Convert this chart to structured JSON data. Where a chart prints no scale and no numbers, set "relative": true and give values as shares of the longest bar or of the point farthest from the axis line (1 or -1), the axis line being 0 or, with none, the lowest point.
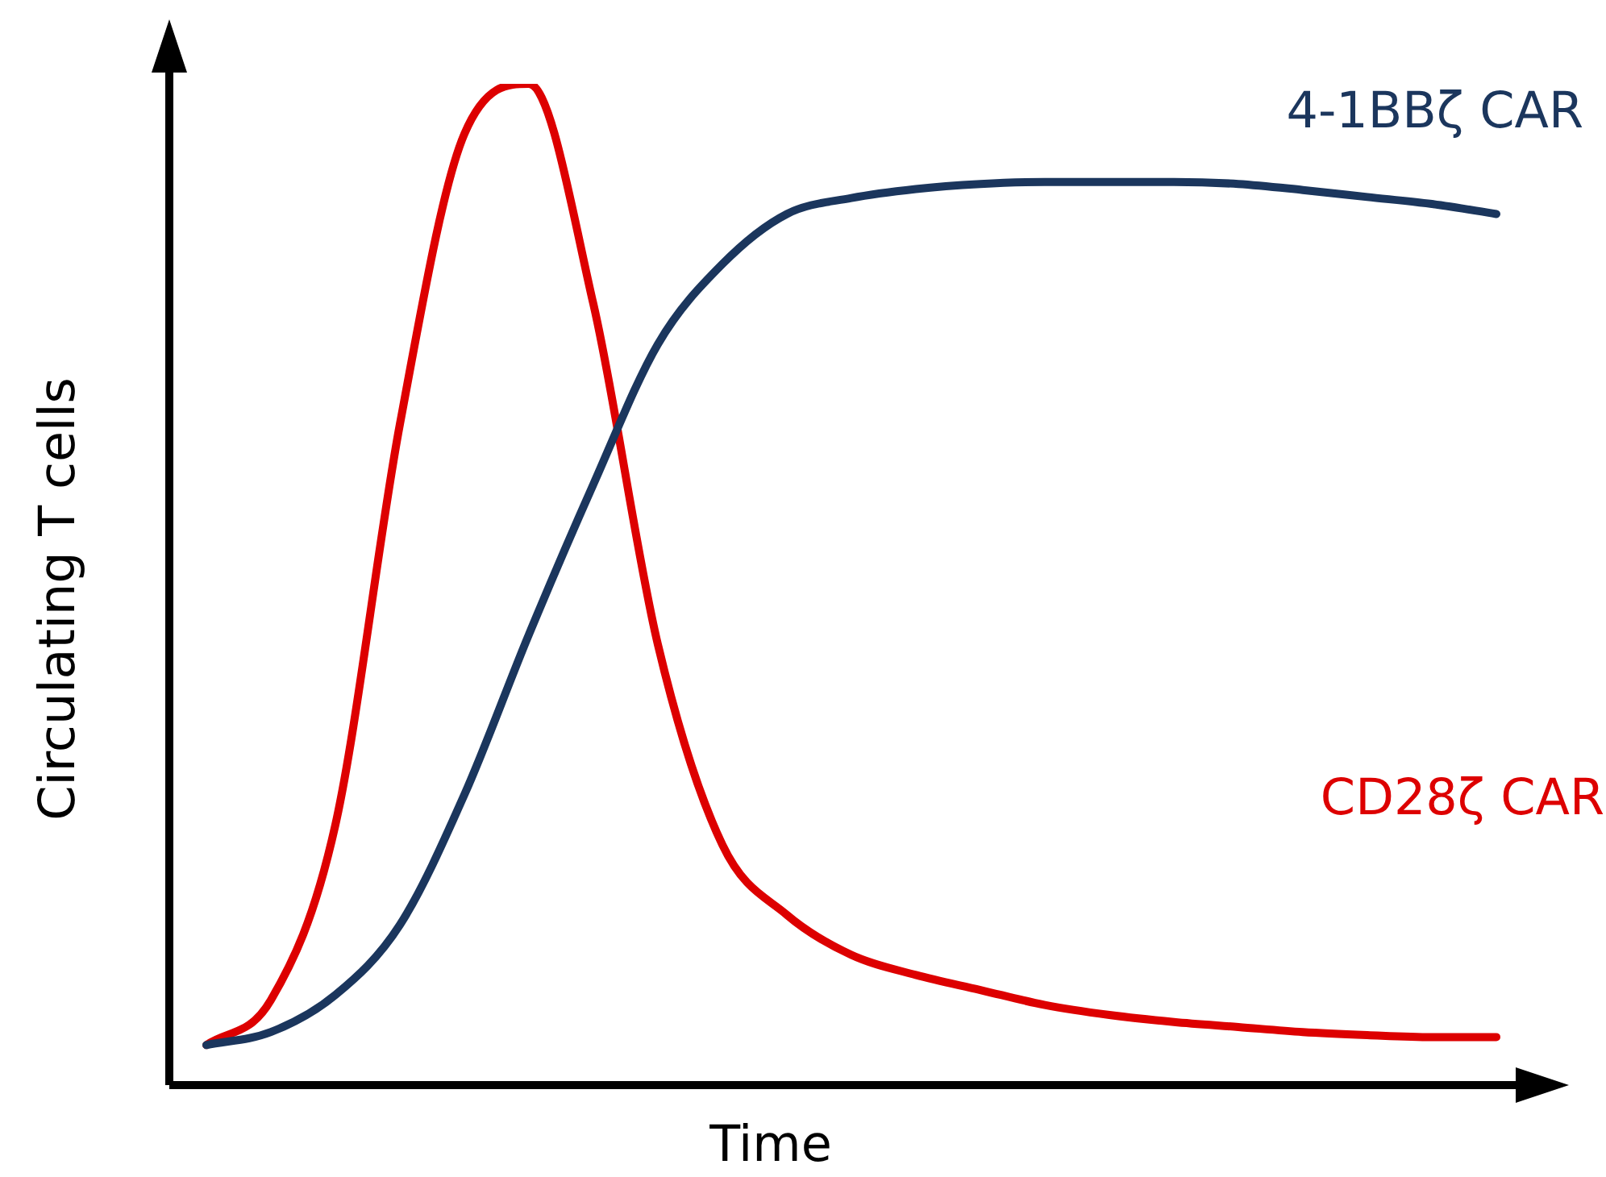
{
  "chart_data": {
    "type": "line",
    "relative": true,
    "xlabel": "Time",
    "ylabel": "Circulating T cells",
    "categories": [
      null,
      null,
      null,
      null,
      null,
      null,
      null,
      null,
      null,
      null,
      null,
      null,
      null,
      null,
      null,
      null,
      null,
      null,
      null,
      null,
      null
    ],
    "series": [
      {
        "name": "4-1BBζ CAR",
        "color": "#1b365d",
        "values": [
          0.04,
          0.053,
          0.09,
          0.16,
          0.29,
          0.45,
          0.6,
          0.74,
          0.82,
          0.87,
          0.886,
          0.895,
          0.9,
          0.902,
          0.902,
          0.902,
          0.9,
          0.894,
          0.887,
          0.88,
          0.87
        ]
      },
      {
        "name": "CD28ζ CAR",
        "color": "#dd0000",
        "values": [
          0.04,
          0.085,
          0.26,
          0.66,
          0.95,
          1,
          0.78,
          0.44,
          0.24,
          0.17,
          0.13,
          0.11,
          0.095,
          0.08,
          0.07,
          0.063,
          0.058,
          0.053,
          0.05,
          0.048,
          0.048
        ]
      }
    ],
    "legend": false,
    "tick_labels": false,
    "marker": "none",
    "line_style": "solid"
  }
}
